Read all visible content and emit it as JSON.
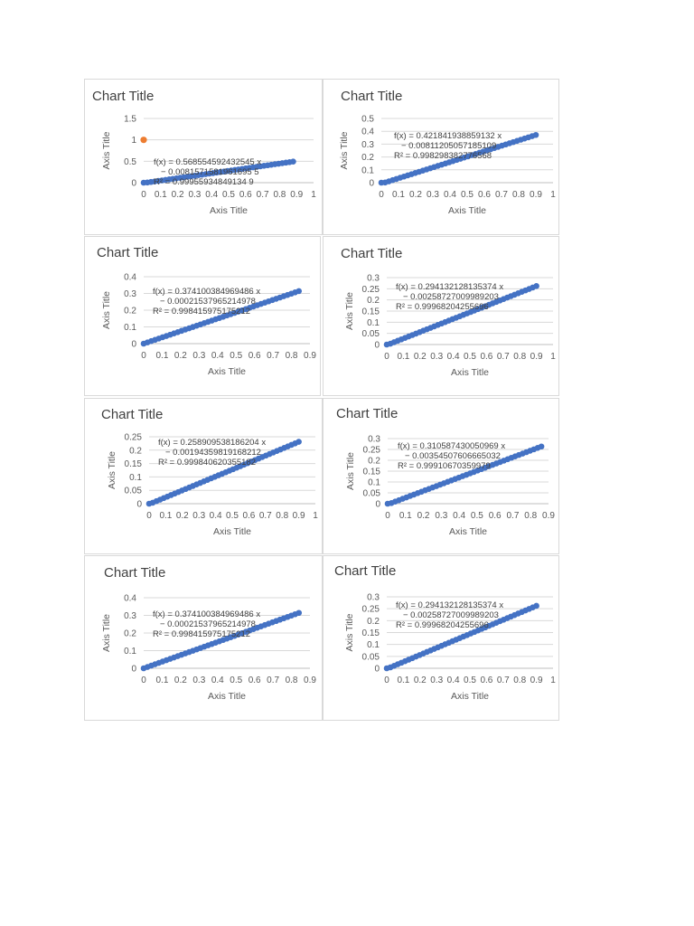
{
  "chart_data": [
    {
      "type": "scatter",
      "title": "Chart Title",
      "xlabel": "Axis Title",
      "ylabel": "Axis Title",
      "xlim": [
        0,
        1
      ],
      "ylim": [
        0,
        1.5
      ],
      "xticks": [
        "0",
        "0.1",
        "0.2",
        "0.3",
        "0.4",
        "0.5",
        "0.6",
        "0.7",
        "0.8",
        "0.9",
        "1"
      ],
      "yticks": [
        "0",
        "0.5",
        "1",
        "1.5"
      ],
      "trendline": [
        "f(x) = 0.568554592432545 x",
        "− 0.0081571581961695 5",
        "R² = 0.99955934849134 9"
      ],
      "series": [
        {
          "color": "#4472c4",
          "slope": 0.568554592432545,
          "intercept": -0.0081571581961695,
          "x_range": [
            0,
            0.88
          ]
        },
        {
          "color": "#ed7d31",
          "points": [
            [
              0,
              1
            ]
          ]
        }
      ],
      "grid": true
    },
    {
      "type": "scatter",
      "title": "Chart Title",
      "xlabel": "Axis Title",
      "ylabel": "Axis Title",
      "xlim": [
        0,
        1
      ],
      "ylim": [
        0,
        0.5
      ],
      "xticks": [
        "0",
        "0.1",
        "0.2",
        "0.3",
        "0.4",
        "0.5",
        "0.6",
        "0.7",
        "0.8",
        "0.9",
        "1"
      ],
      "yticks": [
        "0",
        "0.1",
        "0.2",
        "0.3",
        "0.4",
        "0.5"
      ],
      "trendline": [
        "f(x) = 0.421841938859132 x",
        "− 0.00811205057185109",
        "R² = 0.998298382776568"
      ],
      "series": [
        {
          "color": "#4472c4",
          "slope": 0.421841938859132,
          "intercept": -0.00811205057185109,
          "x_range": [
            0,
            0.9
          ]
        }
      ],
      "grid": true
    },
    {
      "type": "scatter",
      "title": "Chart Title",
      "xlabel": "Axis Title",
      "ylabel": "Axis Title",
      "xlim": [
        0,
        0.9
      ],
      "ylim": [
        0,
        0.4
      ],
      "xticks": [
        "0",
        "0.1",
        "0.2",
        "0.3",
        "0.4",
        "0.5",
        "0.6",
        "0.7",
        "0.8",
        "0.9"
      ],
      "yticks": [
        "0",
        "0.1",
        "0.2",
        "0.3",
        "0.4"
      ],
      "trendline": [
        "f(x) = 0.374100384969486 x",
        "− 0.00021537965214978",
        "R² = 0.998415975175212"
      ],
      "series": [
        {
          "color": "#4472c4",
          "slope": 0.374100384969486,
          "intercept": -0.00021537965214978,
          "x_range": [
            0,
            0.84
          ]
        }
      ],
      "grid": true
    },
    {
      "type": "scatter",
      "title": "Chart Title",
      "xlabel": "Axis Title",
      "ylabel": "Axis Title",
      "xlim": [
        0,
        1
      ],
      "ylim": [
        0,
        0.3
      ],
      "xticks": [
        "0",
        "0.1",
        "0.2",
        "0.3",
        "0.4",
        "0.5",
        "0.6",
        "0.7",
        "0.8",
        "0.9",
        "1"
      ],
      "yticks": [
        "0",
        "0.05",
        "0.1",
        "0.15",
        "0.2",
        "0.25",
        "0.3"
      ],
      "trendline": [
        "f(x) = 0.294132128135374 x",
        "− 0.00258727009989203",
        "R² = 0.99968204255696"
      ],
      "series": [
        {
          "color": "#4472c4",
          "slope": 0.294132128135374,
          "intercept": -0.00258727009989203,
          "x_range": [
            0,
            0.9
          ]
        }
      ],
      "grid": true
    },
    {
      "type": "scatter",
      "title": "Chart Title",
      "xlabel": "Axis Title",
      "ylabel": "Axis Title",
      "xlim": [
        0,
        1
      ],
      "ylim": [
        0,
        0.25
      ],
      "xticks": [
        "0",
        "0.1",
        "0.2",
        "0.3",
        "0.4",
        "0.5",
        "0.6",
        "0.7",
        "0.8",
        "0.9",
        "1"
      ],
      "yticks": [
        "0",
        "0.05",
        "0.1",
        "0.15",
        "0.2",
        "0.25"
      ],
      "trendline": [
        "f(x) = 0.258909538186204 x",
        "− 0.00194359819168212",
        "R² = 0.999840620355182"
      ],
      "series": [
        {
          "color": "#4472c4",
          "slope": 0.258909538186204,
          "intercept": -0.00194359819168212,
          "x_range": [
            0,
            0.9
          ]
        }
      ],
      "grid": true
    },
    {
      "type": "scatter",
      "title": "Chart Title",
      "xlabel": "Axis Title",
      "ylabel": "Axis Title",
      "xlim": [
        0,
        0.9
      ],
      "ylim": [
        0,
        0.3
      ],
      "xticks": [
        "0",
        "0.1",
        "0.2",
        "0.3",
        "0.4",
        "0.5",
        "0.6",
        "0.7",
        "0.8",
        "0.9"
      ],
      "yticks": [
        "0",
        "0.05",
        "0.1",
        "0.15",
        "0.2",
        "0.25",
        "0.3"
      ],
      "trendline": [
        "f(x) = 0.310587430050969 x",
        "− 0.00354507606665032",
        "R² = 0.99910670359979"
      ],
      "series": [
        {
          "color": "#4472c4",
          "slope": 0.310587430050969,
          "intercept": -0.00354507606665032,
          "x_range": [
            0,
            0.86
          ]
        }
      ],
      "grid": true
    },
    {
      "type": "scatter",
      "title": "Chart Title",
      "xlabel": "Axis Title",
      "ylabel": "Axis Title",
      "xlim": [
        0,
        0.9
      ],
      "ylim": [
        0,
        0.4
      ],
      "xticks": [
        "0",
        "0.1",
        "0.2",
        "0.3",
        "0.4",
        "0.5",
        "0.6",
        "0.7",
        "0.8",
        "0.9"
      ],
      "yticks": [
        "0",
        "0.1",
        "0.2",
        "0.3",
        "0.4"
      ],
      "trendline": [
        "f(x) = 0.374100384969486 x",
        "− 0.00021537965214978",
        "R² = 0.998415975175212"
      ],
      "series": [
        {
          "color": "#4472c4",
          "slope": 0.374100384969486,
          "intercept": -0.00021537965214978,
          "x_range": [
            0,
            0.84
          ]
        }
      ],
      "grid": true
    },
    {
      "type": "scatter",
      "title": "Chart Title",
      "xlabel": "Axis Title",
      "ylabel": "Axis Title",
      "xlim": [
        0,
        1
      ],
      "ylim": [
        0,
        0.3
      ],
      "xticks": [
        "0",
        "0.1",
        "0.2",
        "0.3",
        "0.4",
        "0.5",
        "0.6",
        "0.7",
        "0.8",
        "0.9",
        "1"
      ],
      "yticks": [
        "0",
        "0.05",
        "0.1",
        "0.15",
        "0.2",
        "0.25",
        "0.3"
      ],
      "trendline": [
        "f(x) = 0.294132128135374 x",
        "− 0.00258727009989203",
        "R² = 0.99968204255696"
      ],
      "series": [
        {
          "color": "#4472c4",
          "slope": 0.294132128135374,
          "intercept": -0.00258727009989203,
          "x_range": [
            0,
            0.9
          ]
        }
      ],
      "grid": true
    }
  ]
}
